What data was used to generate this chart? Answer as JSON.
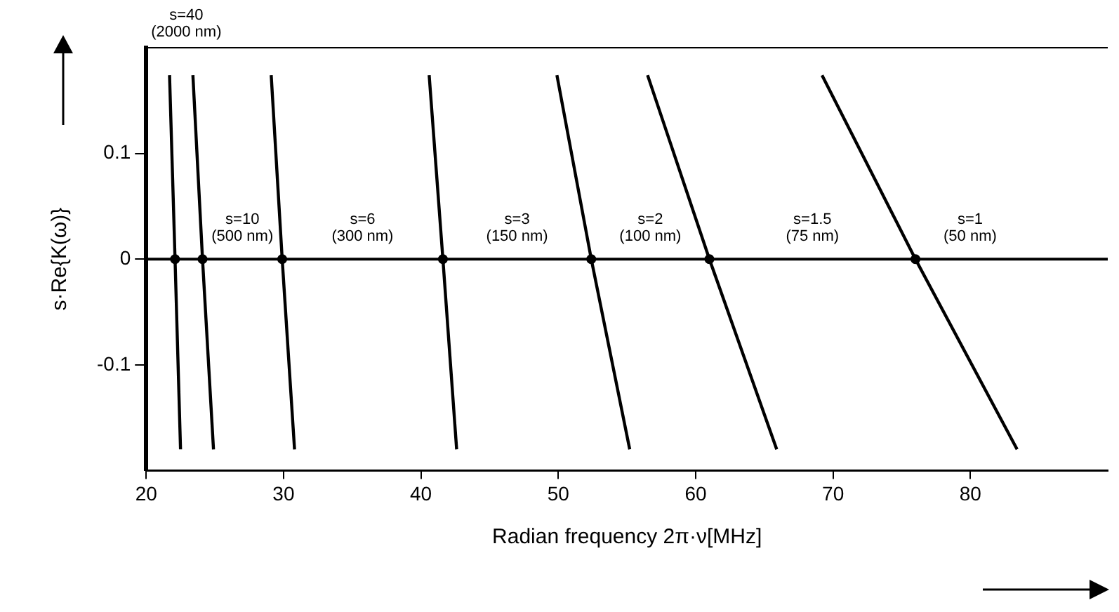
{
  "chart_data": {
    "type": "line",
    "xlabel": "Radian frequency 2π·ν[MHz]",
    "ylabel": "s·Re{K(ω)}",
    "xlim": [
      20,
      90
    ],
    "xticks": [
      20,
      30,
      40,
      50,
      60,
      70,
      80
    ],
    "ylim": [
      -0.2,
      0.2
    ],
    "yticks": [
      -0.1,
      0,
      0.1
    ],
    "grid": false,
    "legend": false,
    "marker": "none",
    "line_style": "solid",
    "series": [
      {
        "color": "#000000",
        "x": [
          21.7,
          22.1,
          22.5
        ],
        "values": [
          0.174,
          0,
          -0.18
        ]
      },
      {
        "color": "#000000",
        "x": [
          23.4,
          24.1,
          24.9
        ],
        "values": [
          0.174,
          0,
          -0.18
        ]
      },
      {
        "color": "#000000",
        "x": [
          29.1,
          29.9,
          30.8
        ],
        "values": [
          0.174,
          0,
          -0.18
        ]
      },
      {
        "color": "#000000",
        "x": [
          40.6,
          41.6,
          42.6
        ],
        "values": [
          0.174,
          0,
          -0.18
        ]
      },
      {
        "color": "#000000",
        "x": [
          49.9,
          52.4,
          55.2
        ],
        "values": [
          0.174,
          0,
          -0.18
        ]
      },
      {
        "color": "#000000",
        "x": [
          56.5,
          61.0,
          65.9
        ],
        "values": [
          0.174,
          0,
          -0.18
        ]
      },
      {
        "color": "#000000",
        "x": [
          69.2,
          76.0,
          83.4
        ],
        "values": [
          0.174,
          0,
          -0.18
        ]
      },
      {
        "type": "scatter",
        "marker": "circle",
        "color": "#000000",
        "x": [
          22.1,
          24.1,
          29.9,
          41.6,
          52.4,
          61.0,
          76.0
        ],
        "values": [
          0,
          0,
          0,
          0,
          0,
          0,
          0
        ]
      }
    ],
    "ref_lines": [
      {
        "axis": "y",
        "value": 0,
        "color": "#000000"
      }
    ],
    "annotations": [
      "s=40\n(2000 nm)",
      "s=10\n(500 nm)",
      "s=6\n(300 nm)",
      "s=3\n(150 nm)",
      "s=2\n(100 nm)",
      "s=1.5\n(75 nm)",
      "s=1\n(50 nm)"
    ]
  }
}
